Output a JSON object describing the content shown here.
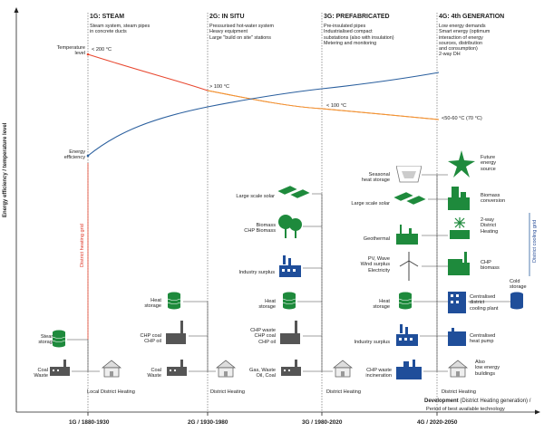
{
  "axis": {
    "y_label": "Energy efficiency / temperature level",
    "x_title_bold": "Development",
    "x_title_rest": " (District Heating generation) /",
    "x_subtitle": "Period of best available technology",
    "ticks": [
      "1G / 1880-1930",
      "2G / 1930-1980",
      "3G / 1980-2020",
      "4G / 2020-2050"
    ]
  },
  "generations": [
    {
      "title": "1G: STEAM",
      "desc": [
        "Steam system, steam pipes",
        "in concrete ducts"
      ]
    },
    {
      "title": "2G: IN SITU",
      "desc": [
        "Pressurised hot-water system",
        "Heavy equipment",
        "Large \"build on site\" stations"
      ]
    },
    {
      "title": "3G: PREFABRICATED",
      "desc": [
        "Pre-insulated pipes",
        "Industrialised compact",
        "substations (also with insulation)",
        "Metering and monitoring"
      ]
    },
    {
      "title": "4G: 4th GENERATION",
      "desc": [
        "Low energy demands",
        "Smart energy (optimum",
        "interaction of energy",
        "sources, distribution",
        "and consumption)",
        "2-way DH"
      ]
    }
  ],
  "curves": {
    "temperature_level": {
      "label": [
        "Temperature",
        "level"
      ],
      "points": [
        "< 200 °C",
        "> 100 °C",
        "< 100 °C",
        "<50-60 °C (70 °C)"
      ]
    },
    "energy_efficiency": {
      "label": [
        "Energy",
        "efficiency"
      ]
    }
  },
  "grids": {
    "heating": "District heating grid",
    "cooling": "District cooling grid"
  },
  "gen1": {
    "items": [
      [
        "Steam",
        "storage"
      ],
      [
        "Coal",
        "Waste"
      ]
    ],
    "network": "Local District Heating"
  },
  "gen2": {
    "items": [
      [
        "Heat",
        "storage"
      ],
      [
        "CHP coal",
        "CHP oil"
      ],
      [
        "Coal",
        "Waste"
      ]
    ],
    "network": "District Heating"
  },
  "gen3": {
    "items": [
      [
        "Large scale solar"
      ],
      [
        "Biomass",
        "CHP Biomass"
      ],
      [
        "Industry surplus"
      ],
      [
        "Heat",
        "storage"
      ],
      [
        "CHP waste",
        "CHP coal",
        "CHP oil"
      ],
      [
        "Gas, Waste",
        "Oil, Coal"
      ]
    ],
    "network": "District Heating"
  },
  "gen4": {
    "left": [
      [
        "Seasonal",
        "heat storage"
      ],
      [
        "Large scale solar"
      ],
      [
        "Geothermal"
      ],
      [
        "PV, Wave",
        "Wind surplus",
        "Electricity"
      ],
      [
        "Heat",
        "storage"
      ],
      [
        "Industry surplus"
      ],
      [
        "CHP waste",
        "incineration"
      ]
    ],
    "right": [
      [
        "Future",
        "energy",
        "source"
      ],
      [
        "Biomass",
        "conversion"
      ],
      [
        "2-way",
        "District",
        "Heating"
      ],
      [
        "CHP",
        "biomass"
      ],
      [
        "Centralised",
        "district",
        "cooling plant"
      ],
      [
        "Centralised",
        "heat pump"
      ],
      [
        "Also",
        "low energy",
        "buildings"
      ]
    ],
    "cold_storage": [
      "Cold",
      "storage"
    ],
    "network": "District Heating"
  },
  "colors": {
    "green": "#1e8a3c",
    "blue": "#1f4e9a",
    "grey": "#555555",
    "red": "#e8472f",
    "orange": "#f29a2e",
    "curve_blue": "#2a5f9e"
  }
}
